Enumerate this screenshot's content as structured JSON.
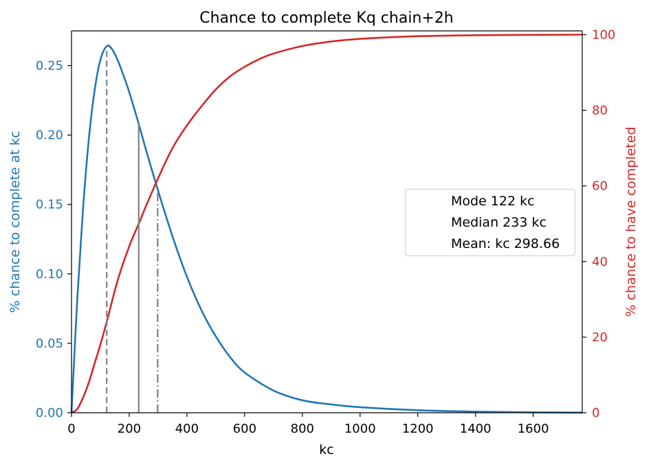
{
  "chart_data": {
    "type": "line",
    "title": "Chance to complete Kq chain+2h",
    "xlabel": "kc",
    "ylabel_left": "% chance to complete at kc",
    "ylabel_right": "% chance to have completed",
    "xlim": [
      0,
      1770
    ],
    "ylim_left": [
      0,
      0.275
    ],
    "ylim_right": [
      0,
      101
    ],
    "x_ticks": [
      "0",
      "200",
      "400",
      "600",
      "800",
      "1000",
      "1200",
      "1400",
      "1600"
    ],
    "y_left_ticks": [
      "0.00",
      "0.05",
      "0.10",
      "0.15",
      "0.20",
      "0.25"
    ],
    "y_right_ticks": [
      "0",
      "20",
      "40",
      "60",
      "80",
      "100"
    ],
    "colors": {
      "left_axis": "#1f77b4",
      "right_axis": "#d62728",
      "markers": "#808080"
    },
    "series": [
      {
        "name": "% chance to complete at kc",
        "axis": "left",
        "color": "#1f77b4",
        "x": [
          0,
          20,
          40,
          60,
          80,
          100,
          122,
          140,
          160,
          180,
          200,
          233,
          260,
          300,
          350,
          400,
          450,
          500,
          550,
          600,
          700,
          800,
          900,
          1000,
          1200,
          1400,
          1600,
          1770
        ],
        "y": [
          0,
          0.082,
          0.147,
          0.197,
          0.232,
          0.254,
          0.264,
          0.262,
          0.254,
          0.243,
          0.231,
          0.208,
          0.188,
          0.16,
          0.127,
          0.098,
          0.074,
          0.055,
          0.04,
          0.029,
          0.016,
          0.009,
          0.006,
          0.004,
          0.0018,
          0.0008,
          0.0003,
          0.0001
        ]
      },
      {
        "name": "% chance to have completed",
        "axis": "right",
        "color": "#d62728",
        "x": [
          0,
          20,
          40,
          60,
          80,
          100,
          122,
          160,
          200,
          233,
          260,
          300,
          350,
          400,
          450,
          500,
          550,
          600,
          650,
          700,
          800,
          900,
          1000,
          1100,
          1200,
          1400,
          1600,
          1770
        ],
        "y": [
          0,
          1.0,
          4.0,
          8.0,
          13.0,
          18.0,
          24.0,
          35.0,
          44.0,
          50.0,
          55.0,
          62.0,
          70.0,
          76.0,
          81.0,
          85.5,
          89.0,
          91.5,
          93.5,
          95.0,
          97.0,
          98.2,
          98.9,
          99.3,
          99.6,
          99.85,
          99.95,
          100.0
        ]
      }
    ],
    "reference_lines": [
      {
        "label": "Mode 122 kc",
        "x": 122,
        "y_top": 0.264,
        "style": "dashed"
      },
      {
        "label": "Median 233 kc",
        "x": 233,
        "y_top": 0.208,
        "style": "solid"
      },
      {
        "label": "Mean: kc 298.66",
        "x": 298.66,
        "y_top": 0.16,
        "style": "dashdot"
      }
    ],
    "grid": false,
    "legend_position": "center-right"
  }
}
